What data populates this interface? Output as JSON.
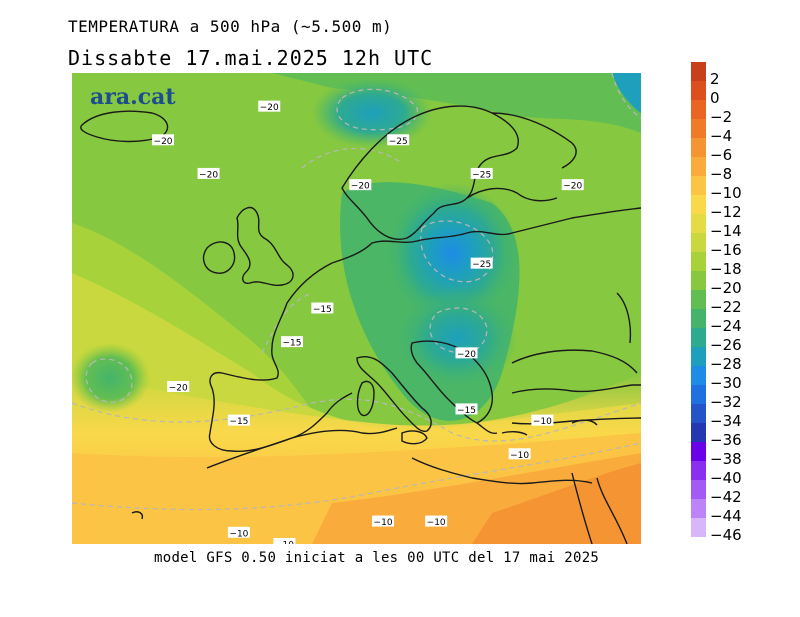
{
  "header": {
    "title": "TEMPERATURA a 500 hPa (~5.500 m)",
    "date_line": "Dissabte   17.mai.2025  12h  UTC"
  },
  "logo": {
    "text": "ara.cat",
    "color": "#1b4d8f"
  },
  "footer": {
    "text": "model GFS 0.50 iniciat a les 00 UTC del 17 mai 2025"
  },
  "legend": {
    "items": [
      {
        "label": "2",
        "color": "#c8401a"
      },
      {
        "label": "0",
        "color": "#dc5020"
      },
      {
        "label": "−2",
        "color": "#ea6424"
      },
      {
        "label": "−4",
        "color": "#f07a28"
      },
      {
        "label": "−6",
        "color": "#f59432"
      },
      {
        "label": "−8",
        "color": "#f9ac3c"
      },
      {
        "label": "−10",
        "color": "#fcc444"
      },
      {
        "label": "−12",
        "color": "#f9d84a"
      },
      {
        "label": "−14",
        "color": "#e4dc46"
      },
      {
        "label": "−16",
        "color": "#c8d83e"
      },
      {
        "label": "−18",
        "color": "#a8d23a"
      },
      {
        "label": "−20",
        "color": "#86c840"
      },
      {
        "label": "−22",
        "color": "#62be52"
      },
      {
        "label": "−24",
        "color": "#44b46a"
      },
      {
        "label": "−26",
        "color": "#2eaa90"
      },
      {
        "label": "−28",
        "color": "#1ea0bc"
      },
      {
        "label": "−30",
        "color": "#1e8ce6"
      },
      {
        "label": "−32",
        "color": "#2070e0"
      },
      {
        "label": "−34",
        "color": "#2454c8"
      },
      {
        "label": "−36",
        "color": "#2438b0"
      },
      {
        "label": "−38",
        "color": "#6a00e8"
      },
      {
        "label": "−40",
        "color": "#8a2ef0"
      },
      {
        "label": "−42",
        "color": "#a45af4"
      },
      {
        "label": "−44",
        "color": "#bc84f6"
      },
      {
        "label": "−46",
        "color": "#d8b6fa"
      }
    ]
  },
  "contour_labels": [
    {
      "text": "−20",
      "lon": -4,
      "lat": 64
    },
    {
      "text": "−25",
      "lon": 13,
      "lat": 61
    },
    {
      "text": "−20",
      "lon": -18,
      "lat": 61
    },
    {
      "text": "−20",
      "lon": -12,
      "lat": 58
    },
    {
      "text": "−20",
      "lon": 8,
      "lat": 57
    },
    {
      "text": "−25",
      "lon": 24,
      "lat": 58
    },
    {
      "text": "−20",
      "lon": 36,
      "lat": 57
    },
    {
      "text": "−25",
      "lon": 24,
      "lat": 50
    },
    {
      "text": "−15",
      "lon": 3,
      "lat": 46
    },
    {
      "text": "−15",
      "lon": -1,
      "lat": 43
    },
    {
      "text": "−20",
      "lon": -16,
      "lat": 39
    },
    {
      "text": "−20",
      "lon": 22,
      "lat": 42
    },
    {
      "text": "−15",
      "lon": 22,
      "lat": 37
    },
    {
      "text": "−10",
      "lon": 32,
      "lat": 36
    },
    {
      "text": "−15",
      "lon": -8,
      "lat": 36
    },
    {
      "text": "−10",
      "lon": 29,
      "lat": 33
    },
    {
      "text": "−10",
      "lon": 18,
      "lat": 27
    },
    {
      "text": "−10",
      "lon": -8,
      "lat": 26
    },
    {
      "text": "−10",
      "lon": -2,
      "lat": 25
    },
    {
      "text": "−10",
      "lon": 11,
      "lat": 27
    }
  ]
}
